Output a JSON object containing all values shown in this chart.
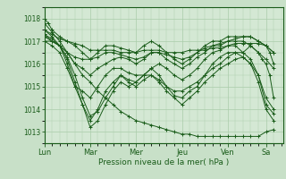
{
  "bg_color": "#c8e0c8",
  "plot_bg_color": "#d4e8d4",
  "line_color": "#1a5c1a",
  "grid_color": "#aaccaa",
  "text_color": "#1a5c1a",
  "xlabel": "Pression niveau de la mer( hPa )",
  "ylim": [
    1012.5,
    1018.5
  ],
  "yticks": [
    1013,
    1014,
    1015,
    1016,
    1017,
    1018
  ],
  "xlim": [
    0,
    250
  ],
  "day_positions": [
    0,
    48,
    96,
    144,
    192,
    232,
    242
  ],
  "day_labels": [
    "Lun",
    "Mar",
    "Mer",
    "Jeu",
    "Ven",
    "Sa"
  ],
  "series": [
    {
      "x": [
        0,
        8,
        16,
        24,
        32,
        40,
        48,
        56,
        64,
        72,
        80,
        88,
        96,
        104,
        112,
        120,
        128,
        136,
        144,
        152,
        160,
        168,
        176,
        184,
        192,
        200,
        208,
        216,
        224,
        232,
        240
      ],
      "y": [
        1017.0,
        1017.0,
        1016.8,
        1016.5,
        1016.0,
        1015.5,
        1015.2,
        1014.8,
        1014.5,
        1014.2,
        1013.9,
        1013.7,
        1013.5,
        1013.4,
        1013.3,
        1013.2,
        1013.1,
        1013.0,
        1012.9,
        1012.9,
        1012.8,
        1012.8,
        1012.8,
        1012.8,
        1012.8,
        1012.8,
        1012.8,
        1012.8,
        1012.8,
        1013.0,
        1013.1
      ]
    },
    {
      "x": [
        0,
        8,
        16,
        24,
        32,
        40,
        48,
        56,
        64,
        72,
        80,
        88,
        96,
        104,
        112,
        120,
        128,
        136,
        144,
        152,
        160,
        168,
        176,
        184,
        192,
        200,
        208,
        216,
        224,
        232,
        240
      ],
      "y": [
        1017.2,
        1017.0,
        1016.8,
        1016.3,
        1015.5,
        1014.5,
        1013.7,
        1013.9,
        1014.5,
        1015.0,
        1015.5,
        1015.2,
        1015.0,
        1015.3,
        1015.5,
        1015.2,
        1014.8,
        1014.5,
        1014.2,
        1014.5,
        1014.8,
        1015.2,
        1015.5,
        1015.8,
        1016.0,
        1016.2,
        1016.3,
        1016.0,
        1015.5,
        1014.5,
        1014.0
      ]
    },
    {
      "x": [
        0,
        8,
        16,
        24,
        32,
        40,
        48,
        56,
        64,
        72,
        80,
        88,
        96,
        104,
        112,
        120,
        128,
        136,
        144,
        152,
        160,
        168,
        176,
        184,
        192,
        200,
        208,
        216,
        224,
        232,
        240
      ],
      "y": [
        1017.3,
        1017.1,
        1016.8,
        1016.2,
        1015.2,
        1014.2,
        1013.2,
        1013.5,
        1014.2,
        1014.8,
        1015.2,
        1015.0,
        1015.2,
        1015.5,
        1015.8,
        1015.5,
        1015.0,
        1014.6,
        1014.5,
        1014.8,
        1015.0,
        1015.5,
        1016.0,
        1016.3,
        1016.5,
        1016.5,
        1016.3,
        1016.0,
        1015.2,
        1014.0,
        1013.5
      ]
    },
    {
      "x": [
        0,
        8,
        16,
        24,
        32,
        40,
        48,
        56,
        64,
        72,
        80,
        88,
        96,
        104,
        112,
        120,
        128,
        136,
        144,
        152,
        160,
        168,
        176,
        184,
        192,
        200,
        208,
        216,
        224,
        232,
        240
      ],
      "y": [
        1017.5,
        1017.2,
        1016.8,
        1016.0,
        1015.0,
        1014.2,
        1013.5,
        1014.0,
        1014.8,
        1015.2,
        1015.5,
        1015.3,
        1015.2,
        1015.5,
        1015.8,
        1016.0,
        1015.8,
        1015.5,
        1015.3,
        1015.5,
        1015.8,
        1016.2,
        1016.5,
        1016.6,
        1016.8,
        1016.8,
        1016.5,
        1016.2,
        1015.5,
        1014.2,
        1013.8
      ]
    },
    {
      "x": [
        0,
        8,
        16,
        24,
        32,
        40,
        48,
        56,
        64,
        72,
        80,
        88,
        96,
        104,
        112,
        120,
        128,
        136,
        144,
        152,
        160,
        168,
        176,
        184,
        192,
        200,
        208,
        216,
        224,
        232,
        240
      ],
      "y": [
        1017.0,
        1016.8,
        1016.5,
        1015.8,
        1015.0,
        1014.8,
        1014.5,
        1015.0,
        1015.5,
        1015.8,
        1015.8,
        1015.6,
        1015.5,
        1015.5,
        1015.5,
        1015.3,
        1015.0,
        1014.8,
        1014.8,
        1015.0,
        1015.2,
        1015.5,
        1015.8,
        1016.0,
        1016.3,
        1016.5,
        1016.5,
        1016.8,
        1016.5,
        1016.2,
        1015.8
      ]
    },
    {
      "x": [
        0,
        8,
        16,
        24,
        32,
        40,
        48,
        56,
        64,
        72,
        80,
        88,
        96,
        104,
        112,
        120,
        128,
        136,
        144,
        152,
        160,
        168,
        176,
        184,
        192,
        200,
        208,
        216,
        224,
        232,
        240
      ],
      "y": [
        1017.3,
        1017.0,
        1016.8,
        1016.5,
        1016.3,
        1016.2,
        1016.2,
        1016.3,
        1016.5,
        1016.5,
        1016.4,
        1016.3,
        1016.2,
        1016.3,
        1016.5,
        1016.5,
        1016.4,
        1016.3,
        1016.2,
        1016.3,
        1016.5,
        1016.7,
        1016.8,
        1016.9,
        1017.0,
        1017.1,
        1017.2,
        1017.2,
        1017.0,
        1016.8,
        1016.5
      ]
    },
    {
      "x": [
        0,
        8,
        16,
        24,
        32,
        40,
        48,
        56,
        64,
        72,
        80,
        88,
        96,
        104,
        112,
        120,
        128,
        136,
        144,
        152,
        160,
        168,
        176,
        184,
        192,
        200,
        208,
        216,
        224,
        232,
        240
      ],
      "y": [
        1017.5,
        1017.3,
        1017.1,
        1017.0,
        1016.9,
        1016.8,
        1016.6,
        1016.6,
        1016.6,
        1016.6,
        1016.5,
        1016.5,
        1016.5,
        1016.6,
        1016.6,
        1016.6,
        1016.5,
        1016.5,
        1016.5,
        1016.6,
        1016.6,
        1016.6,
        1016.7,
        1016.7,
        1016.8,
        1016.9,
        1016.9,
        1016.9,
        1016.9,
        1016.8,
        1016.5
      ]
    },
    {
      "x": [
        0,
        4,
        8,
        16,
        24,
        32,
        40,
        48,
        56,
        64,
        72,
        80,
        88,
        96,
        104,
        112,
        120,
        128,
        136,
        144,
        152,
        160,
        168,
        176,
        184,
        192,
        200,
        208,
        216,
        224,
        232,
        236,
        240
      ],
      "y": [
        1018.0,
        1017.8,
        1017.5,
        1017.2,
        1017.0,
        1016.8,
        1016.5,
        1016.2,
        1016.5,
        1016.8,
        1016.8,
        1016.7,
        1016.6,
        1016.5,
        1016.8,
        1017.0,
        1016.8,
        1016.5,
        1016.2,
        1016.0,
        1016.2,
        1016.5,
        1016.8,
        1017.0,
        1017.0,
        1017.2,
        1017.2,
        1017.2,
        1017.2,
        1017.0,
        1016.8,
        1016.5,
        1016.0
      ]
    },
    {
      "x": [
        0,
        8,
        16,
        24,
        32,
        40,
        48,
        56,
        64,
        72,
        80,
        88,
        96,
        104,
        112,
        120,
        128,
        136,
        144,
        152,
        160,
        168,
        176,
        184,
        192,
        200,
        208,
        216,
        224,
        228,
        232,
        236,
        240
      ],
      "y": [
        1017.8,
        1017.4,
        1017.0,
        1016.5,
        1016.0,
        1015.8,
        1015.5,
        1015.8,
        1016.0,
        1016.2,
        1016.3,
        1016.2,
        1016.0,
        1016.2,
        1016.5,
        1016.5,
        1016.2,
        1016.0,
        1015.8,
        1016.0,
        1016.3,
        1016.5,
        1016.8,
        1016.8,
        1017.0,
        1017.0,
        1017.0,
        1016.8,
        1016.5,
        1016.2,
        1016.0,
        1015.5,
        1014.5
      ]
    }
  ]
}
